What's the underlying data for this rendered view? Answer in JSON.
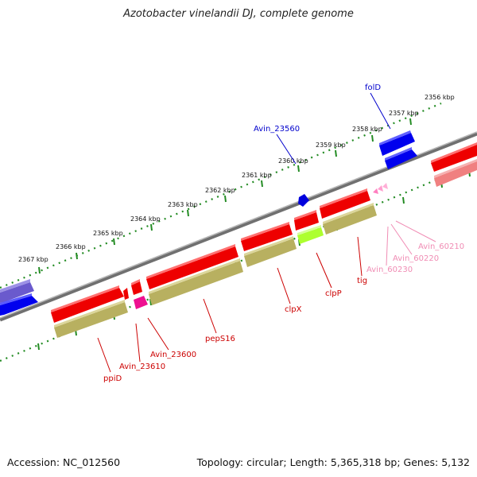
{
  "title": "Azotobacter vinelandii DJ, complete genome",
  "accession": "Accession: NC_012560",
  "topology": "Topology: circular; Length: 5,365,318 bp; Genes: 5,132",
  "colors": {
    "forward_gene": "#ff0000",
    "reverse_gene": "#0000ee",
    "cds": "#bdb76b",
    "tick": "#228b22",
    "backbone": "#808080",
    "label_red": "#cc0000",
    "label_blue": "#0000cc",
    "label_pink": "#f08cb4"
  },
  "kbp_marks": [
    {
      "label": "2356 kbp"
    },
    {
      "label": "2357 kbp"
    },
    {
      "label": "2358 kbp"
    },
    {
      "label": "2359 kbp"
    },
    {
      "label": "2360 kbp"
    },
    {
      "label": "2361 kbp"
    },
    {
      "label": "2362 kbp"
    },
    {
      "label": "2363 kbp"
    },
    {
      "label": "2364 kbp"
    },
    {
      "label": "2365 kbp"
    },
    {
      "label": "2366 kbp"
    },
    {
      "label": "2367 kbp"
    }
  ],
  "gene_labels": [
    {
      "name": "folD",
      "color": "blue"
    },
    {
      "name": "Avin_23560",
      "color": "blue"
    },
    {
      "name": "Avin_60210",
      "color": "pink"
    },
    {
      "name": "Avin_60220",
      "color": "pink"
    },
    {
      "name": "Avin_60230",
      "color": "pink"
    },
    {
      "name": "tig",
      "color": "red"
    },
    {
      "name": "clpP",
      "color": "red"
    },
    {
      "name": "clpX",
      "color": "red"
    },
    {
      "name": "pepS16",
      "color": "red"
    },
    {
      "name": "Avin_23600",
      "color": "red"
    },
    {
      "name": "Avin_23610",
      "color": "red"
    },
    {
      "name": "ppiD",
      "color": "red"
    }
  ]
}
